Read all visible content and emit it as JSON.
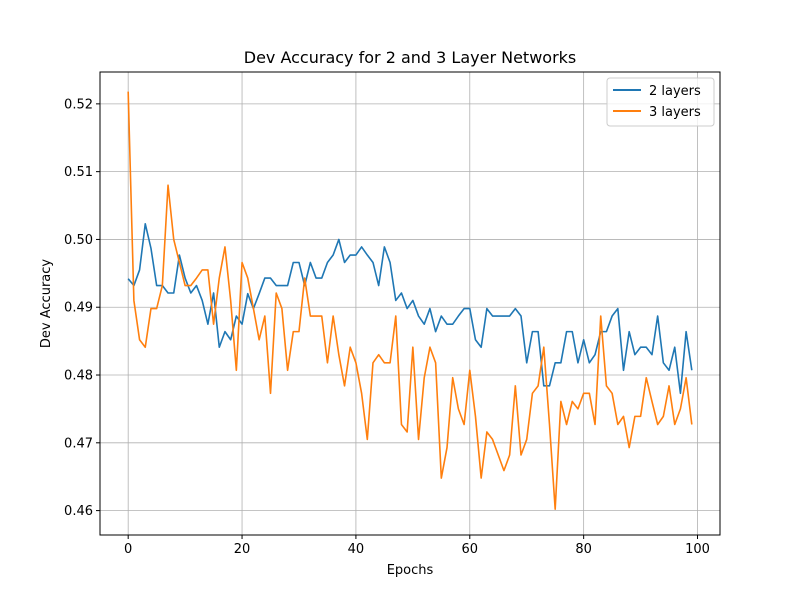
{
  "chart_data": {
    "type": "line",
    "title": "Dev Accuracy for 2 and 3 Layer Networks",
    "xlabel": "Epochs",
    "ylabel": "Dev Accuracy",
    "xlim": [
      -4.95,
      103.95
    ],
    "ylim": [
      0.4564,
      0.5247
    ],
    "xticks": [
      0,
      20,
      40,
      60,
      80,
      100
    ],
    "xtick_labels": [
      "0",
      "20",
      "40",
      "60",
      "80",
      "100"
    ],
    "yticks": [
      0.46,
      0.47,
      0.48,
      0.49,
      0.5,
      0.51,
      0.52
    ],
    "ytick_labels": [
      "0.46",
      "0.47",
      "0.48",
      "0.49",
      "0.50",
      "0.51",
      "0.52"
    ],
    "grid": true,
    "legend_position": "top-right",
    "x": [
      0,
      1,
      2,
      3,
      4,
      5,
      6,
      7,
      8,
      9,
      10,
      11,
      12,
      13,
      14,
      15,
      16,
      17,
      18,
      19,
      20,
      21,
      22,
      23,
      24,
      25,
      26,
      27,
      28,
      29,
      30,
      31,
      32,
      33,
      34,
      35,
      36,
      37,
      38,
      39,
      40,
      41,
      42,
      43,
      44,
      45,
      46,
      47,
      48,
      49,
      50,
      51,
      52,
      53,
      54,
      55,
      56,
      57,
      58,
      59,
      60,
      61,
      62,
      63,
      64,
      65,
      66,
      67,
      68,
      69,
      70,
      71,
      72,
      73,
      74,
      75,
      76,
      77,
      78,
      79,
      80,
      81,
      82,
      83,
      84,
      85,
      86,
      87,
      88,
      89,
      90,
      91,
      92,
      93,
      94,
      95,
      96,
      97,
      98,
      99
    ],
    "series": [
      {
        "name": "2 layers",
        "color": "#1f77b4",
        "values": [
          0.4942,
          0.4932,
          0.4955,
          0.5023,
          0.4987,
          0.4932,
          0.4932,
          0.4921,
          0.4921,
          0.4977,
          0.4943,
          0.4921,
          0.4932,
          0.491,
          0.4875,
          0.4921,
          0.4841,
          0.4864,
          0.4852,
          0.4887,
          0.4875,
          0.492,
          0.4898,
          0.492,
          0.4943,
          0.4943,
          0.4932,
          0.4932,
          0.4932,
          0.4966,
          0.4966,
          0.4932,
          0.4966,
          0.4943,
          0.4943,
          0.4966,
          0.4977,
          0.5,
          0.4966,
          0.4977,
          0.4977,
          0.4989,
          0.4977,
          0.4966,
          0.4932,
          0.4989,
          0.4966,
          0.491,
          0.4921,
          0.4898,
          0.491,
          0.4887,
          0.4875,
          0.4898,
          0.4864,
          0.4887,
          0.4875,
          0.4875,
          0.4887,
          0.4898,
          0.4898,
          0.4852,
          0.4841,
          0.4898,
          0.4887,
          0.4887,
          0.4887,
          0.4887,
          0.4898,
          0.4887,
          0.4818,
          0.4864,
          0.4864,
          0.4784,
          0.4784,
          0.4818,
          0.4818,
          0.4864,
          0.4864,
          0.4818,
          0.4852,
          0.4818,
          0.483,
          0.4864,
          0.4864,
          0.4887,
          0.4898,
          0.4807,
          0.4864,
          0.483,
          0.4841,
          0.4841,
          0.483,
          0.4887,
          0.4818,
          0.4807,
          0.4841,
          0.4773,
          0.4864,
          0.4807
        ]
      },
      {
        "name": "3 layers",
        "color": "#ff7f0e",
        "values": [
          0.5218,
          0.491,
          0.4852,
          0.4841,
          0.4898,
          0.4898,
          0.4932,
          0.508,
          0.5,
          0.4966,
          0.4932,
          0.4932,
          0.4943,
          0.4955,
          0.4955,
          0.4875,
          0.4943,
          0.4989,
          0.491,
          0.4807,
          0.4966,
          0.4943,
          0.4898,
          0.4852,
          0.4887,
          0.4773,
          0.4921,
          0.4898,
          0.4807,
          0.4864,
          0.4864,
          0.4943,
          0.4887,
          0.4887,
          0.4887,
          0.4818,
          0.4887,
          0.483,
          0.4784,
          0.4841,
          0.4818,
          0.4773,
          0.4705,
          0.4818,
          0.483,
          0.4818,
          0.4818,
          0.4887,
          0.4727,
          0.4716,
          0.4841,
          0.4705,
          0.4796,
          0.4841,
          0.4818,
          0.4648,
          0.4693,
          0.4796,
          0.475,
          0.4727,
          0.4807,
          0.4739,
          0.4648,
          0.4716,
          0.4705,
          0.4682,
          0.4659,
          0.4682,
          0.4784,
          0.4682,
          0.4705,
          0.4773,
          0.4784,
          0.4841,
          0.4727,
          0.4602,
          0.4761,
          0.4727,
          0.4761,
          0.475,
          0.4773,
          0.4773,
          0.4727,
          0.4887,
          0.4784,
          0.4773,
          0.4727,
          0.4739,
          0.4693,
          0.4739,
          0.4739,
          0.4796,
          0.4761,
          0.4727,
          0.4739,
          0.4784,
          0.4727,
          0.475,
          0.4796,
          0.4727
        ]
      }
    ]
  }
}
